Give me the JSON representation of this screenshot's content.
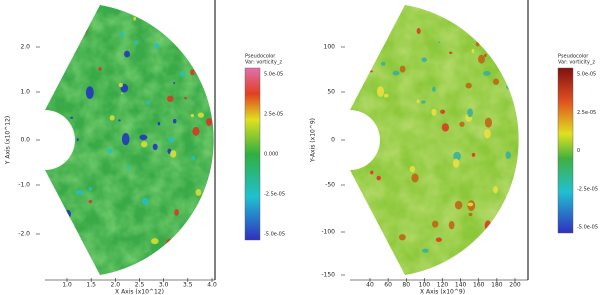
{
  "panels": [
    {
      "y_axis_label": "Y Axis (x10^12)",
      "x_axis_label": "X Axis (x10^12)",
      "y_ticks": [
        "2.0",
        "1.0",
        "0.0",
        "-1.0",
        "-2.0"
      ],
      "x_ticks": [
        "1.0",
        "1.5",
        "2.0",
        "2.5",
        "3.0",
        "3.5",
        "4.0"
      ],
      "legend": {
        "title": "Pseudocolor",
        "variable": "Var: vorticity_z",
        "labels": [
          "5.0e-05",
          "2.5e-05",
          "0.000",
          "-2.5e-05",
          "-5.0e-05"
        ]
      }
    },
    {
      "y_axis_label": "Y-Axis (x10^9)",
      "x_axis_label": "X Axis (x10^9)",
      "y_ticks": [
        "100",
        "50",
        "0",
        "-50",
        "-100",
        "-150"
      ],
      "x_ticks": [
        "40",
        "60",
        "80",
        "100",
        "120",
        "140",
        "160",
        "180",
        "200"
      ],
      "legend": {
        "title": "Pseudocolor",
        "variable": "Var: vorticity_z",
        "labels": [
          "5.0e-05",
          "2.5e-05",
          "0",
          "-2.5e-05",
          "-5.0e-05"
        ]
      }
    }
  ]
}
